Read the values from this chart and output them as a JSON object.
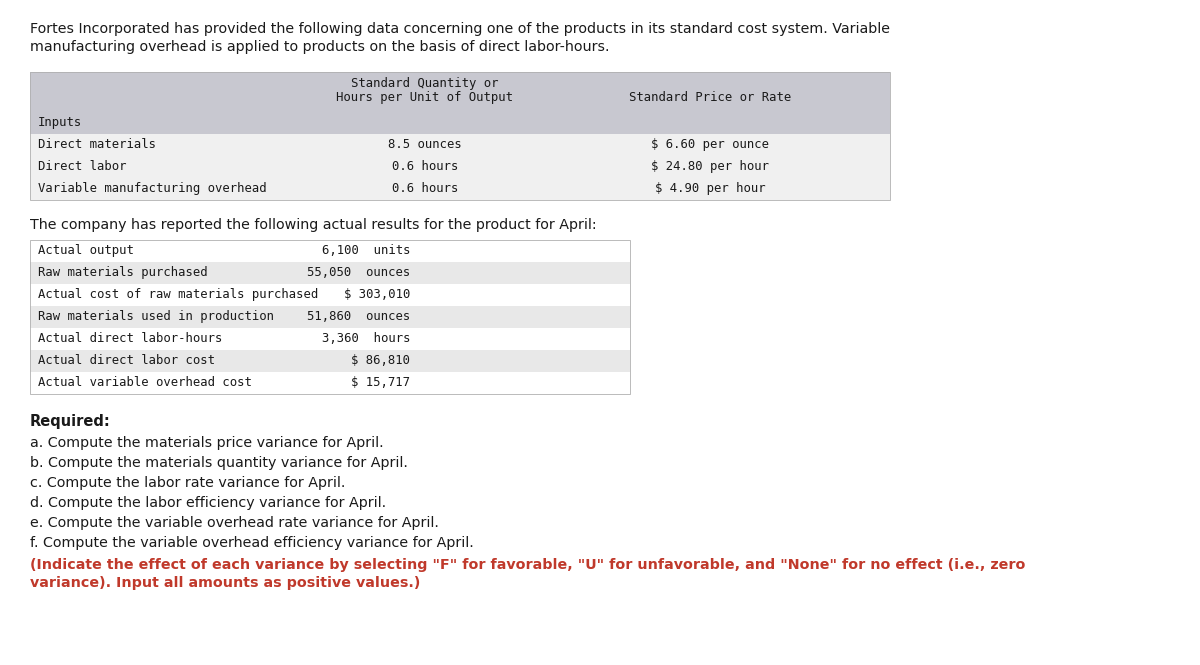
{
  "intro_text_line1": "Fortes Incorporated has provided the following data concerning one of the products in its standard cost system. Variable",
  "intro_text_line2": "manufacturing overhead is applied to products on the basis of direct labor-hours.",
  "table1_header_col2_line1": "Standard Quantity or",
  "table1_header_col2_line2": "Hours per Unit of Output",
  "table1_header_col3": "Standard Price or Rate",
  "table1_col1": [
    "Inputs",
    "Direct materials",
    "Direct labor",
    "Variable manufacturing overhead"
  ],
  "table1_col2": [
    "",
    "8.5 ounces",
    "0.6 hours",
    "0.6 hours"
  ],
  "table1_col3": [
    "",
    "$ 6.60 per ounce",
    "$ 24.80 per hour",
    "$ 4.90 per hour"
  ],
  "middle_text": "The company has reported the following actual results for the product for April:",
  "table2_col1": [
    "Actual output",
    "Raw materials purchased",
    "Actual cost of raw materials purchased",
    "Raw materials used in production",
    "Actual direct labor-hours",
    "Actual direct labor cost",
    "Actual variable overhead cost"
  ],
  "table2_col2": [
    "6,100  units",
    "55,050  ounces",
    "$ 303,010",
    "51,860  ounces",
    "3,360  hours",
    "$ 86,810",
    "$ 15,717"
  ],
  "required_title": "Required:",
  "required_items": [
    "a. Compute the materials price variance for April.",
    "b. Compute the materials quantity variance for April.",
    "c. Compute the labor rate variance for April.",
    "d. Compute the labor efficiency variance for April.",
    "e. Compute the variable overhead rate variance for April.",
    "f. Compute the variable overhead efficiency variance for April."
  ],
  "note_line1": "(Indicate the effect of each variance by selecting \"F\" for favorable, \"U\" for unfavorable, and \"None\" for no effect (i.e., zero",
  "note_line2": "variance). Input all amounts as positive values.)",
  "bg_color": "#ffffff",
  "table1_header_bg": "#c8c8d0",
  "table1_row_bg": "#f0f0f0",
  "table2_row_alt_bg": "#e8e8e8",
  "text_color": "#1a1a1a",
  "note_color": "#c0392b",
  "mono_font": "monospace",
  "sans_font": "DejaVu Sans"
}
